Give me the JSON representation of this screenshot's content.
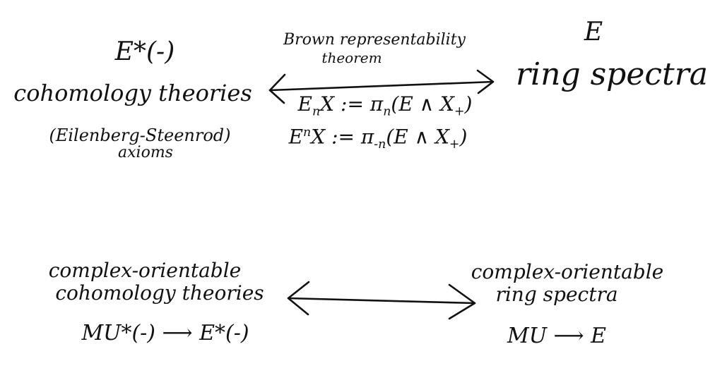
{
  "top_left": {
    "functor": "E*(-)",
    "title": "cohomology theories",
    "note_line1": "(Eilenberg-Steenrod)",
    "note_line2": "axioms"
  },
  "top_right": {
    "symbol": "E",
    "title": "ring spectra"
  },
  "top_arrow": {
    "label_line1": "Brown representability",
    "label_line2": "theorem",
    "homology_lhs": "E",
    "homology_sub": "n",
    "homology_rhs": "X := π",
    "homology_pi_sub": "n",
    "homology_paren": "(E ∧ X",
    "homology_plus": "+",
    "homology_close": ")",
    "cohomology_lhs": "E",
    "cohomology_sup": "n",
    "cohomology_rhs": "X := π",
    "cohomology_pi_sub": "-n",
    "cohomology_paren": "(E ∧ X",
    "cohomology_plus": "+",
    "cohomology_close": ")"
  },
  "bottom_left": {
    "line1": "complex-orientable",
    "line2": "cohomology theories",
    "map": "MU*(-) ⟶ E*(-)"
  },
  "bottom_right": {
    "line1": "complex-orientable",
    "line2": "ring spectra",
    "map": "MU ⟶ E"
  }
}
